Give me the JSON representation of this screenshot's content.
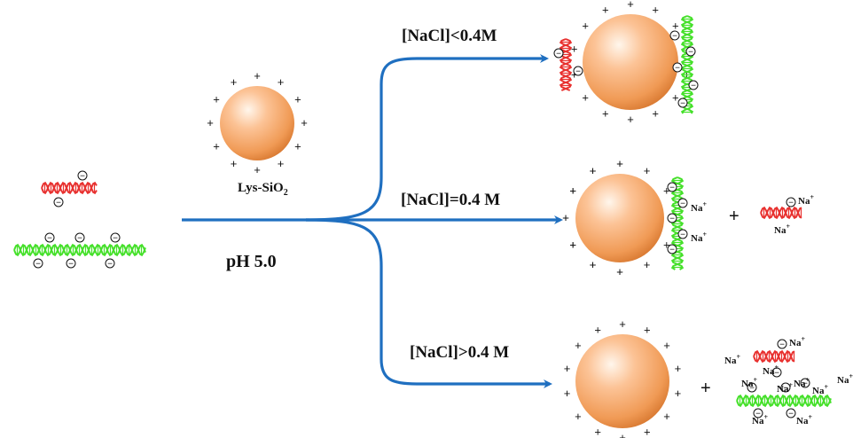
{
  "labels": {
    "nanoparticle": "Lys-SiO",
    "nanoparticle_subscript": "2",
    "ph": "pH 5.0",
    "condition_low": "[NaCl]<0.4M",
    "condition_equal": "[NaCl]=0.4 M",
    "condition_high": "[NaCl]>0.4 M"
  },
  "symbols": {
    "positive": "+",
    "negative": "−",
    "plus_operator": "+",
    "sodium": "Na",
    "sodium_charge": "+"
  },
  "colors": {
    "arrow": "#1f6fc0",
    "red_dna": "#e8312f",
    "green_dna": "#45e02a",
    "sphere_light": "#fff4e6",
    "sphere_mid": "#fcb784",
    "sphere_dark": "#e6873b"
  }
}
